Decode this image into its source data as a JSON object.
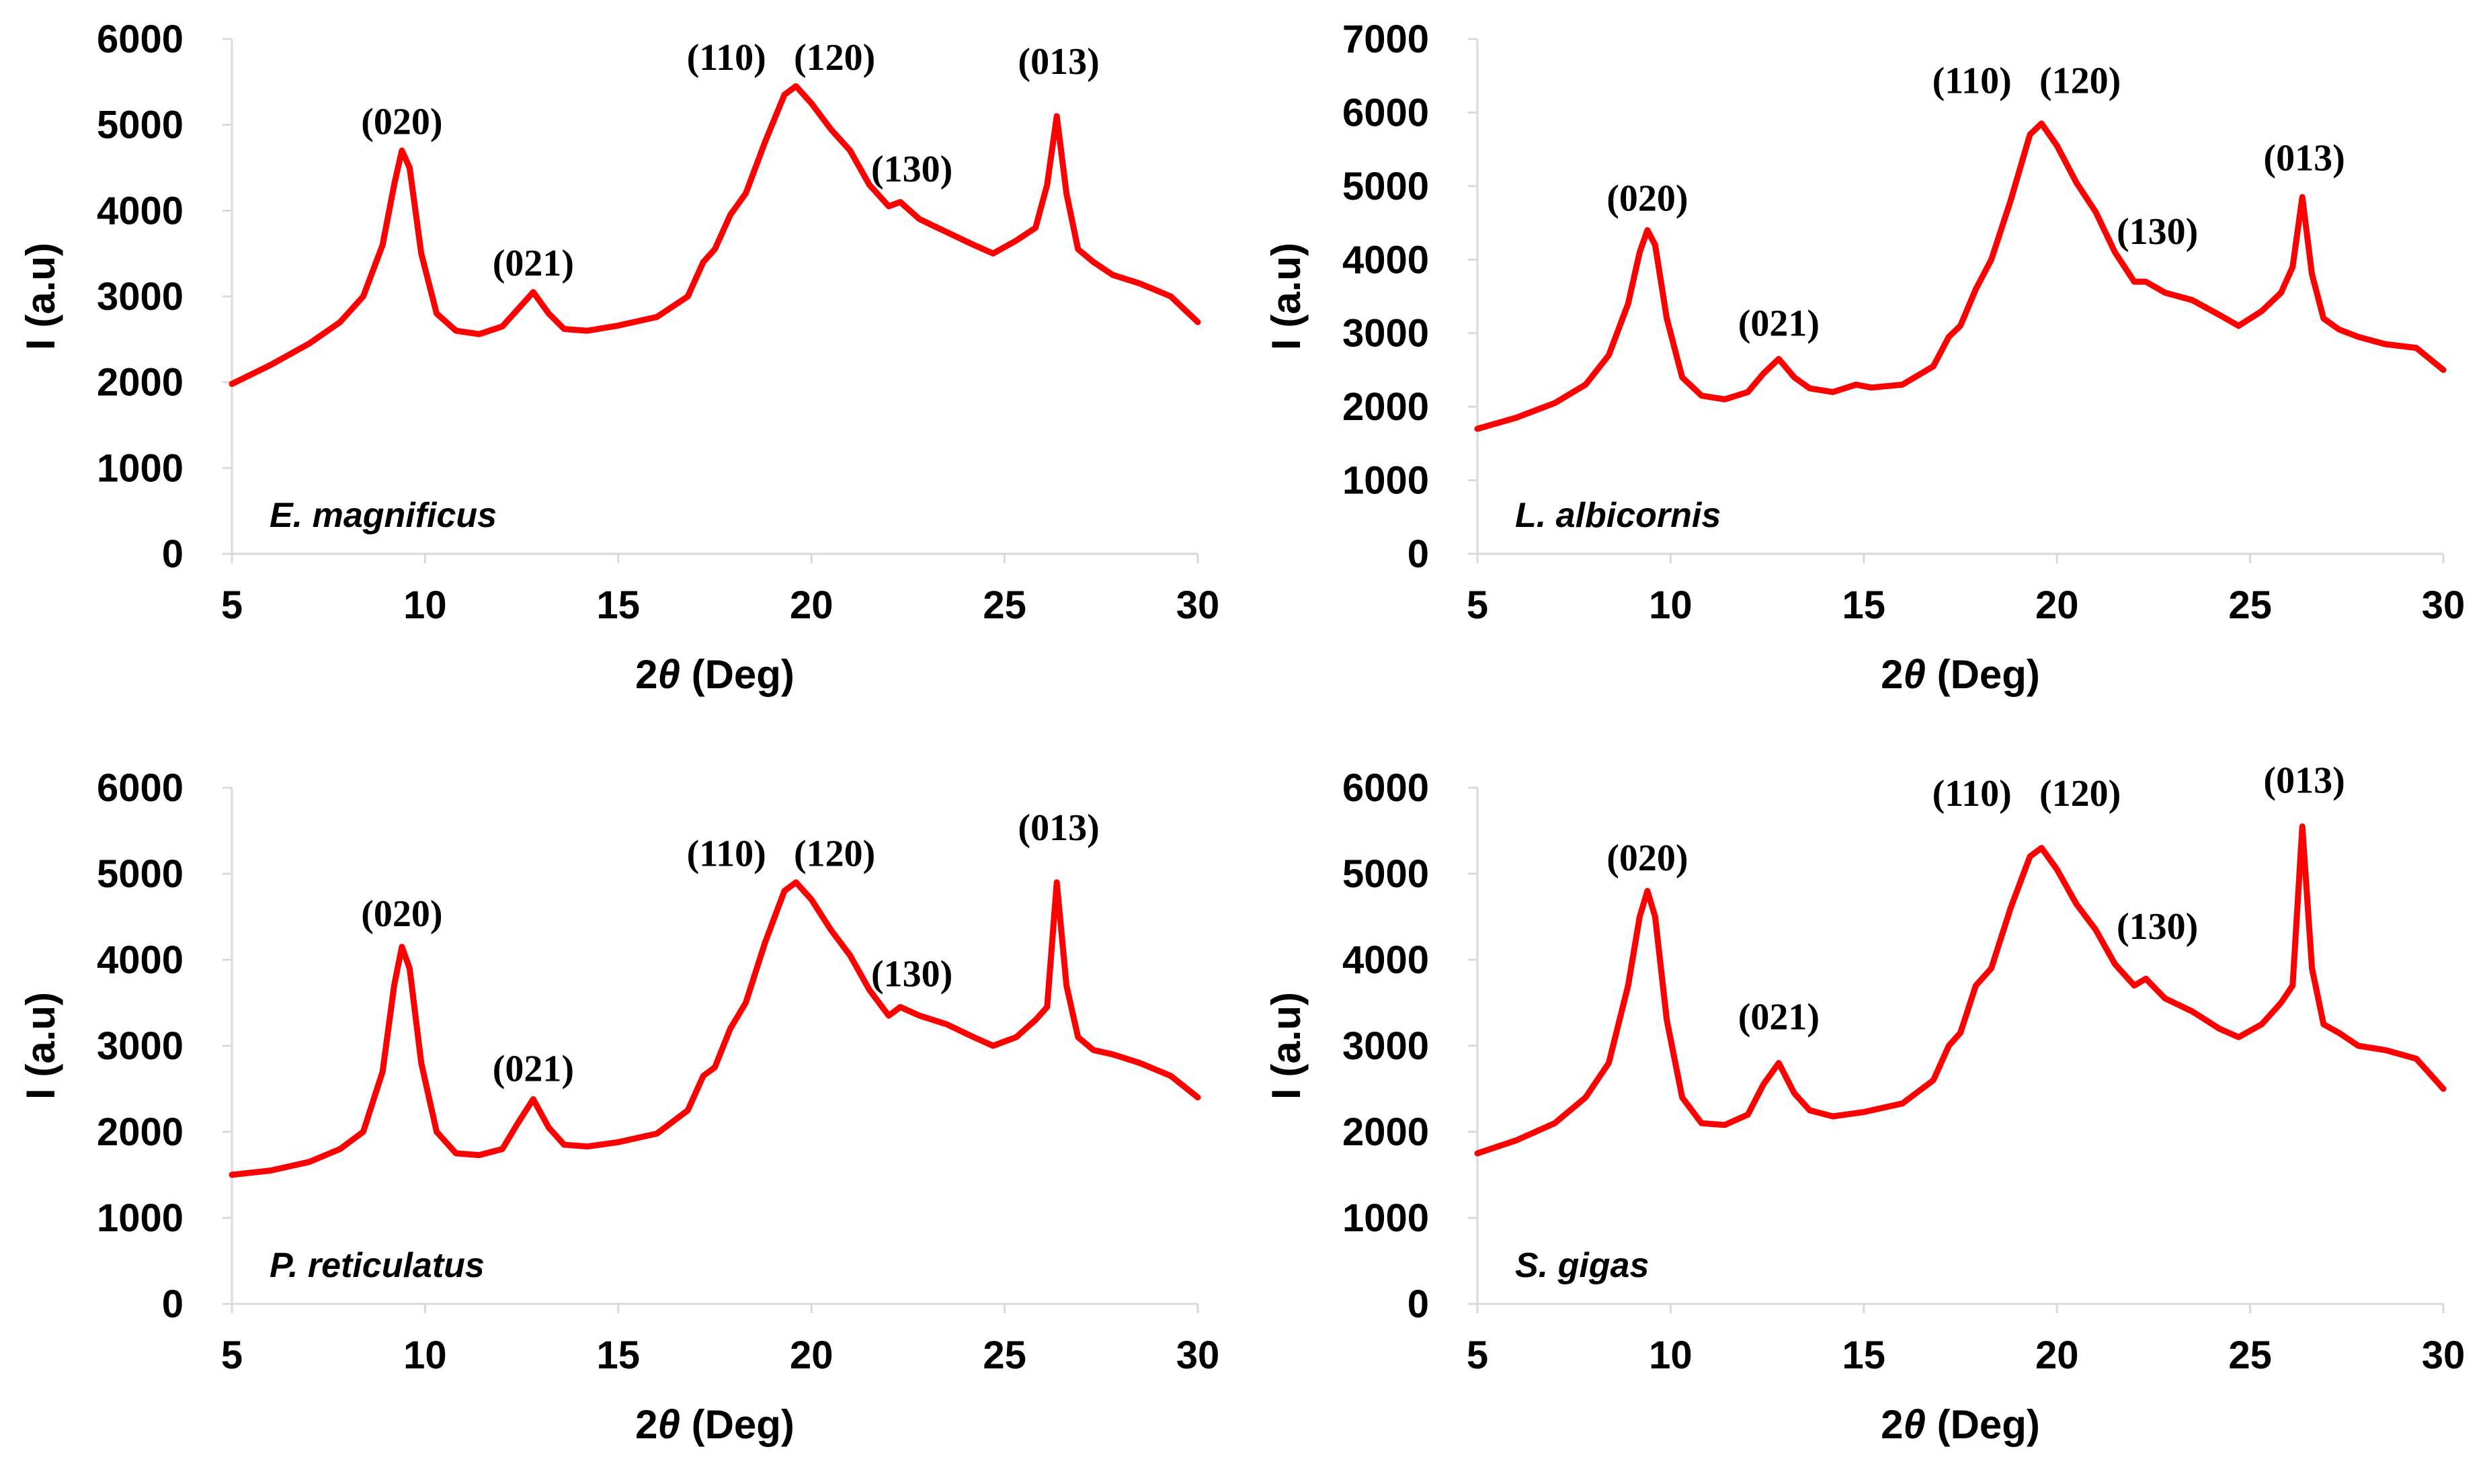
{
  "chart_data": [
    {
      "type": "line",
      "panel": "top-left",
      "title": "",
      "sample_label": "E. magnificus",
      "xlabel_prefix": "2",
      "xlabel_symbol": "θ",
      "xlabel_suffix": " (Deg)",
      "ylabel": "I (a.u)",
      "xlim": [
        5,
        30
      ],
      "ylim": [
        0,
        6000
      ],
      "x_ticks": [
        5,
        10,
        15,
        20,
        25,
        30
      ],
      "y_ticks": [
        0,
        1000,
        2000,
        3000,
        4000,
        5000,
        6000
      ],
      "grid": false,
      "series": [
        {
          "name": "E. magnificus",
          "color": "#ff0000",
          "x": [
            5,
            6,
            7,
            7.8,
            8.4,
            8.9,
            9.2,
            9.4,
            9.6,
            9.9,
            10.3,
            10.8,
            11.4,
            12.0,
            12.4,
            12.8,
            13.2,
            13.6,
            14.2,
            15,
            16,
            16.8,
            17.2,
            17.5,
            17.9,
            18.3,
            18.8,
            19.3,
            19.6,
            20.0,
            20.5,
            21.0,
            21.5,
            22.0,
            22.3,
            22.8,
            23.5,
            24.2,
            24.7,
            25.3,
            25.8,
            26.1,
            26.35,
            26.6,
            26.9,
            27.3,
            27.8,
            28.5,
            29.3,
            30
          ],
          "y": [
            1980,
            2200,
            2450,
            2700,
            3000,
            3600,
            4300,
            4700,
            4500,
            3500,
            2800,
            2600,
            2560,
            2650,
            2850,
            3050,
            2800,
            2620,
            2600,
            2660,
            2760,
            3000,
            3400,
            3550,
            3950,
            4200,
            4800,
            5350,
            5450,
            5250,
            4950,
            4700,
            4300,
            4050,
            4100,
            3900,
            3750,
            3600,
            3500,
            3650,
            3800,
            4300,
            5100,
            4200,
            3550,
            3400,
            3250,
            3150,
            3000,
            2700
          ]
        }
      ],
      "annotations": [
        {
          "text": "(020)",
          "x": 9.4,
          "y": 4750
        },
        {
          "text": "(021)",
          "x": 12.8,
          "y": 3100
        },
        {
          "text": "(110)",
          "x": 17.8,
          "y": 5500
        },
        {
          "text": "(120)",
          "x": 20.6,
          "y": 5500
        },
        {
          "text": "(130)",
          "x": 22.6,
          "y": 4200
        },
        {
          "text": "(013)",
          "x": 26.4,
          "y": 5450
        }
      ]
    },
    {
      "type": "line",
      "panel": "top-right",
      "title": "",
      "sample_label": "L. albicornis",
      "xlabel_prefix": "2",
      "xlabel_symbol": "θ",
      "xlabel_suffix": " (Deg)",
      "ylabel": "I (a.u)",
      "xlim": [
        5,
        30
      ],
      "ylim": [
        0,
        7000
      ],
      "x_ticks": [
        5,
        10,
        15,
        20,
        25,
        30
      ],
      "y_ticks": [
        0,
        1000,
        2000,
        3000,
        4000,
        5000,
        6000,
        7000
      ],
      "grid": false,
      "series": [
        {
          "name": "L. albicornis",
          "color": "#ff0000",
          "x": [
            5,
            6,
            7,
            7.8,
            8.4,
            8.9,
            9.2,
            9.4,
            9.6,
            9.9,
            10.3,
            10.8,
            11.4,
            12.0,
            12.4,
            12.8,
            13.2,
            13.6,
            14.2,
            14.8,
            15.2,
            16,
            16.8,
            17.2,
            17.5,
            17.9,
            18.3,
            18.8,
            19.3,
            19.6,
            20.0,
            20.5,
            21.0,
            21.5,
            22.0,
            22.3,
            22.8,
            23.5,
            24.2,
            24.7,
            25.3,
            25.8,
            26.1,
            26.35,
            26.6,
            26.9,
            27.3,
            27.8,
            28.5,
            29.3,
            30
          ],
          "y": [
            1700,
            1850,
            2050,
            2300,
            2700,
            3400,
            4100,
            4400,
            4200,
            3200,
            2400,
            2150,
            2100,
            2200,
            2450,
            2650,
            2400,
            2250,
            2200,
            2300,
            2260,
            2300,
            2550,
            2950,
            3100,
            3600,
            4000,
            4800,
            5700,
            5850,
            5550,
            5050,
            4650,
            4100,
            3700,
            3700,
            3550,
            3450,
            3250,
            3100,
            3300,
            3550,
            3900,
            4850,
            3800,
            3200,
            3050,
            2950,
            2850,
            2800,
            2500
          ]
        }
      ],
      "annotations": [
        {
          "text": "(020)",
          "x": 9.4,
          "y": 4500
        },
        {
          "text": "(021)",
          "x": 12.8,
          "y": 2800
        },
        {
          "text": "(110)",
          "x": 17.8,
          "y": 6100
        },
        {
          "text": "(120)",
          "x": 20.6,
          "y": 6100
        },
        {
          "text": "(130)",
          "x": 22.6,
          "y": 4050
        },
        {
          "text": "(013)",
          "x": 26.4,
          "y": 5050
        }
      ]
    },
    {
      "type": "line",
      "panel": "bottom-left",
      "title": "",
      "sample_label": "P. reticulatus",
      "xlabel_prefix": "2",
      "xlabel_symbol": "θ",
      "xlabel_suffix": " (Deg)",
      "ylabel": "I (a.u)",
      "xlim": [
        5,
        30
      ],
      "ylim": [
        0,
        6000
      ],
      "x_ticks": [
        5,
        10,
        15,
        20,
        25,
        30
      ],
      "y_ticks": [
        0,
        1000,
        2000,
        3000,
        4000,
        5000,
        6000
      ],
      "grid": false,
      "series": [
        {
          "name": "P. reticulatus",
          "color": "#ff0000",
          "x": [
            5,
            6,
            7,
            7.8,
            8.4,
            8.9,
            9.2,
            9.4,
            9.6,
            9.9,
            10.3,
            10.8,
            11.4,
            12.0,
            12.4,
            12.8,
            13.2,
            13.6,
            14.2,
            15,
            16,
            16.8,
            17.2,
            17.5,
            17.9,
            18.3,
            18.8,
            19.3,
            19.6,
            20.0,
            20.5,
            21.0,
            21.5,
            22.0,
            22.3,
            22.8,
            23.5,
            24.2,
            24.7,
            25.3,
            25.8,
            26.1,
            26.35,
            26.6,
            26.9,
            27.3,
            27.8,
            28.5,
            29.3,
            30
          ],
          "y": [
            1500,
            1550,
            1650,
            1800,
            2000,
            2700,
            3700,
            4150,
            3900,
            2800,
            2000,
            1750,
            1730,
            1800,
            2100,
            2380,
            2050,
            1850,
            1830,
            1880,
            1980,
            2250,
            2650,
            2750,
            3200,
            3500,
            4200,
            4800,
            4900,
            4700,
            4350,
            4050,
            3650,
            3350,
            3450,
            3350,
            3250,
            3100,
            3000,
            3100,
            3300,
            3450,
            4900,
            3700,
            3100,
            2950,
            2900,
            2800,
            2650,
            2400
          ]
        }
      ],
      "annotations": [
        {
          "text": "(020)",
          "x": 9.4,
          "y": 4250
        },
        {
          "text": "(021)",
          "x": 12.8,
          "y": 2450
        },
        {
          "text": "(110)",
          "x": 17.8,
          "y": 4950
        },
        {
          "text": "(120)",
          "x": 20.6,
          "y": 4950
        },
        {
          "text": "(130)",
          "x": 22.6,
          "y": 3550
        },
        {
          "text": "(013)",
          "x": 26.4,
          "y": 5250
        }
      ]
    },
    {
      "type": "line",
      "panel": "bottom-right",
      "title": "",
      "sample_label": "S. gigas",
      "xlabel_prefix": "2",
      "xlabel_symbol": "θ",
      "xlabel_suffix": " (Deg)",
      "ylabel": "I (a.u)",
      "xlim": [
        5,
        30
      ],
      "ylim": [
        0,
        6000
      ],
      "x_ticks": [
        5,
        10,
        15,
        20,
        25,
        30
      ],
      "y_ticks": [
        0,
        1000,
        2000,
        3000,
        4000,
        5000,
        6000
      ],
      "grid": false,
      "series": [
        {
          "name": "S. gigas",
          "color": "#ff0000",
          "x": [
            5,
            6,
            7,
            7.8,
            8.4,
            8.9,
            9.2,
            9.4,
            9.6,
            9.9,
            10.3,
            10.8,
            11.4,
            12.0,
            12.4,
            12.8,
            13.2,
            13.6,
            14.2,
            15,
            16,
            16.8,
            17.2,
            17.5,
            17.9,
            18.3,
            18.8,
            19.3,
            19.6,
            20.0,
            20.5,
            21.0,
            21.5,
            22.0,
            22.3,
            22.8,
            23.5,
            24.2,
            24.7,
            25.3,
            25.8,
            26.1,
            26.35,
            26.6,
            26.9,
            27.3,
            27.8,
            28.5,
            29.3,
            30
          ],
          "y": [
            1750,
            1900,
            2100,
            2400,
            2800,
            3700,
            4500,
            4800,
            4500,
            3300,
            2400,
            2100,
            2080,
            2200,
            2550,
            2800,
            2450,
            2250,
            2180,
            2230,
            2330,
            2600,
            3000,
            3150,
            3700,
            3900,
            4600,
            5200,
            5300,
            5050,
            4650,
            4350,
            3950,
            3700,
            3780,
            3550,
            3400,
            3200,
            3100,
            3250,
            3500,
            3700,
            5550,
            3900,
            3250,
            3150,
            3000,
            2950,
            2850,
            2500
          ]
        }
      ],
      "annotations": [
        {
          "text": "(020)",
          "x": 9.4,
          "y": 4900
        },
        {
          "text": "(021)",
          "x": 12.8,
          "y": 3050
        },
        {
          "text": "(110)",
          "x": 17.8,
          "y": 5650
        },
        {
          "text": "(120)",
          "x": 20.6,
          "y": 5650
        },
        {
          "text": "(130)",
          "x": 22.6,
          "y": 4100
        },
        {
          "text": "(013)",
          "x": 26.4,
          "y": 5800
        }
      ]
    }
  ]
}
